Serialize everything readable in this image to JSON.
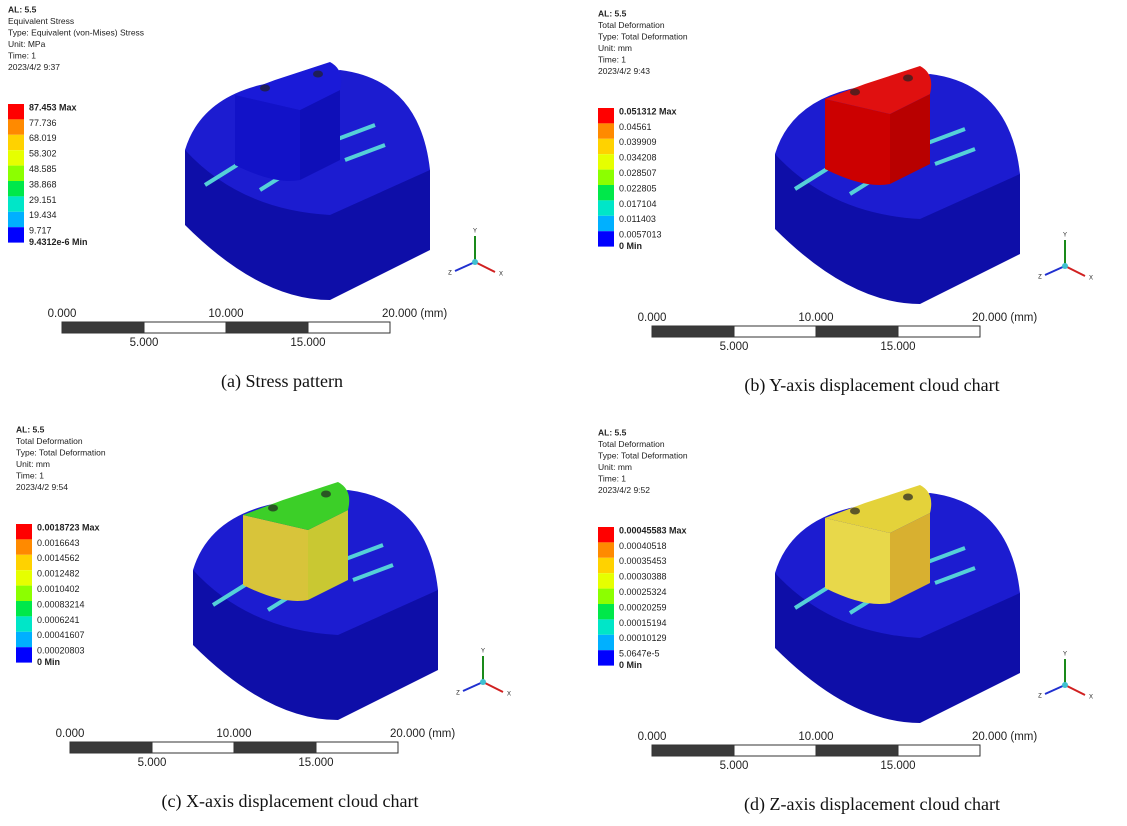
{
  "panels": [
    {
      "header": [
        "AL: 5.5",
        "Equivalent Stress",
        "Type: Equivalent (von-Mises) Stress",
        "Unit: MPa",
        "Time: 1",
        "2023/4/2 9:37"
      ],
      "legend": [
        "87.453 Max",
        "77.736",
        "68.019",
        "58.302",
        "48.585",
        "38.868",
        "29.151",
        "19.434",
        "9.717",
        "9.4312e-6 Min"
      ],
      "scale_top": [
        "0.000",
        "10.000",
        "20.000 (mm)"
      ],
      "scale_bottom": [
        "5.000",
        "15.000"
      ],
      "triad": [
        "Y",
        "Z",
        "X"
      ],
      "caption": "(a) Stress pattern"
    },
    {
      "header": [
        "AL: 5.5",
        "Total Deformation",
        "Type: Total Deformation",
        "Unit: mm",
        "Time: 1",
        "2023/4/2 9:43"
      ],
      "legend": [
        "0.051312 Max",
        "0.04561",
        "0.039909",
        "0.034208",
        "0.028507",
        "0.022805",
        "0.017104",
        "0.011403",
        "0.0057013",
        "0 Min"
      ],
      "scale_top": [
        "0.000",
        "10.000",
        "20.000 (mm)"
      ],
      "scale_bottom": [
        "5.000",
        "15.000"
      ],
      "triad": [
        "Y",
        "Z",
        "X"
      ],
      "caption": "(b) Y-axis displacement cloud chart"
    },
    {
      "header": [
        "AL: 5.5",
        "Total Deformation",
        "Type: Total Deformation",
        "Unit: mm",
        "Time: 1",
        "2023/4/2 9:54"
      ],
      "legend": [
        "0.0018723 Max",
        "0.0016643",
        "0.0014562",
        "0.0012482",
        "0.0010402",
        "0.00083214",
        "0.0006241",
        "0.00041607",
        "0.00020803",
        "0 Min"
      ],
      "scale_top": [
        "0.000",
        "10.000",
        "20.000 (mm)"
      ],
      "scale_bottom": [
        "5.000",
        "15.000"
      ],
      "triad": [
        "Y",
        "Z",
        "X"
      ],
      "caption": "(c) X-axis displacement cloud chart"
    },
    {
      "header": [
        "AL: 5.5",
        "Total Deformation",
        "Type: Total Deformation",
        "Unit: mm",
        "Time: 1",
        "2023/4/2 9:52"
      ],
      "legend": [
        "0.00045583 Max",
        "0.00040518",
        "0.00035453",
        "0.00030388",
        "0.00025324",
        "0.00020259",
        "0.00015194",
        "0.00010129",
        "5.0647e-5",
        "0 Min"
      ],
      "scale_top": [
        "0.000",
        "10.000",
        "20.000 (mm)"
      ],
      "scale_bottom": [
        "5.000",
        "15.000"
      ],
      "triad": [
        "Y",
        "Z",
        "X"
      ],
      "caption": "(d) Z-axis displacement cloud chart"
    }
  ]
}
